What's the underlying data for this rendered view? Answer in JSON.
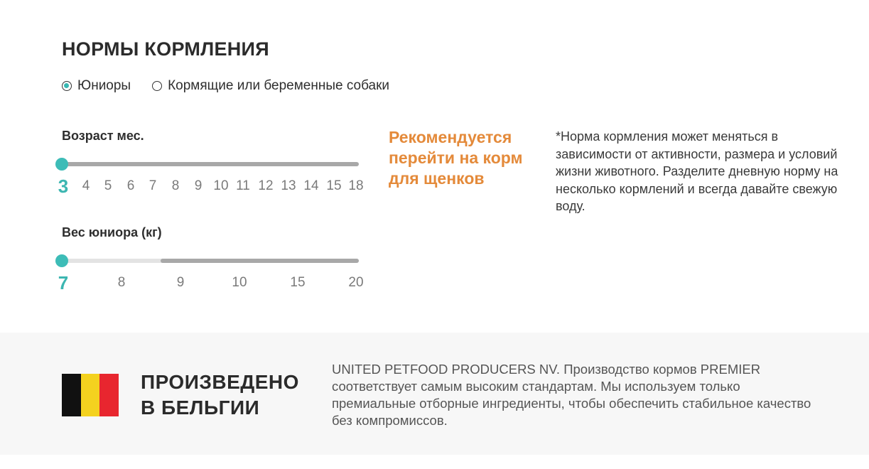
{
  "feeding": {
    "title": "НОРМЫ КОРМЛЕНИЯ",
    "options": [
      {
        "label": "Юниоры",
        "selected": true
      },
      {
        "label": "Кормящие или беременные собаки",
        "selected": false
      }
    ],
    "age_slider": {
      "label": "Возраст мес.",
      "value": "3",
      "ticks": [
        "4",
        "5",
        "6",
        "7",
        "8",
        "9",
        "10",
        "11",
        "12",
        "13",
        "14",
        "15",
        "18"
      ]
    },
    "weight_slider": {
      "label": "Вес юниора (кг)",
      "value": "7",
      "ticks": [
        "8",
        "9",
        "10",
        "15",
        "20"
      ]
    },
    "recommendation": "Рекомендуется перейти на корм для щенков",
    "note": "*Норма кормления может меняться в зависимости от активности, размера и условий жизни животного. Разделите дневную норму на несколько кормлений и всегда давайте свежую воду."
  },
  "origin": {
    "title": "ПРОИЗВЕДЕНО В БЕЛЬГИИ",
    "text": "UNITED PETFOOD PRODUCERS NV. Производство кормов PREMIER соответствует самым высоким стандартам. Мы используем только премиальные отборные ингредиенты, чтобы обеспечить стабильное качество без компромиссов.",
    "flag_colors": [
      "#111111",
      "#f4d21f",
      "#e8262f"
    ]
  },
  "colors": {
    "accent": "#3dbcb7",
    "recommendation": "#e48a3a"
  }
}
